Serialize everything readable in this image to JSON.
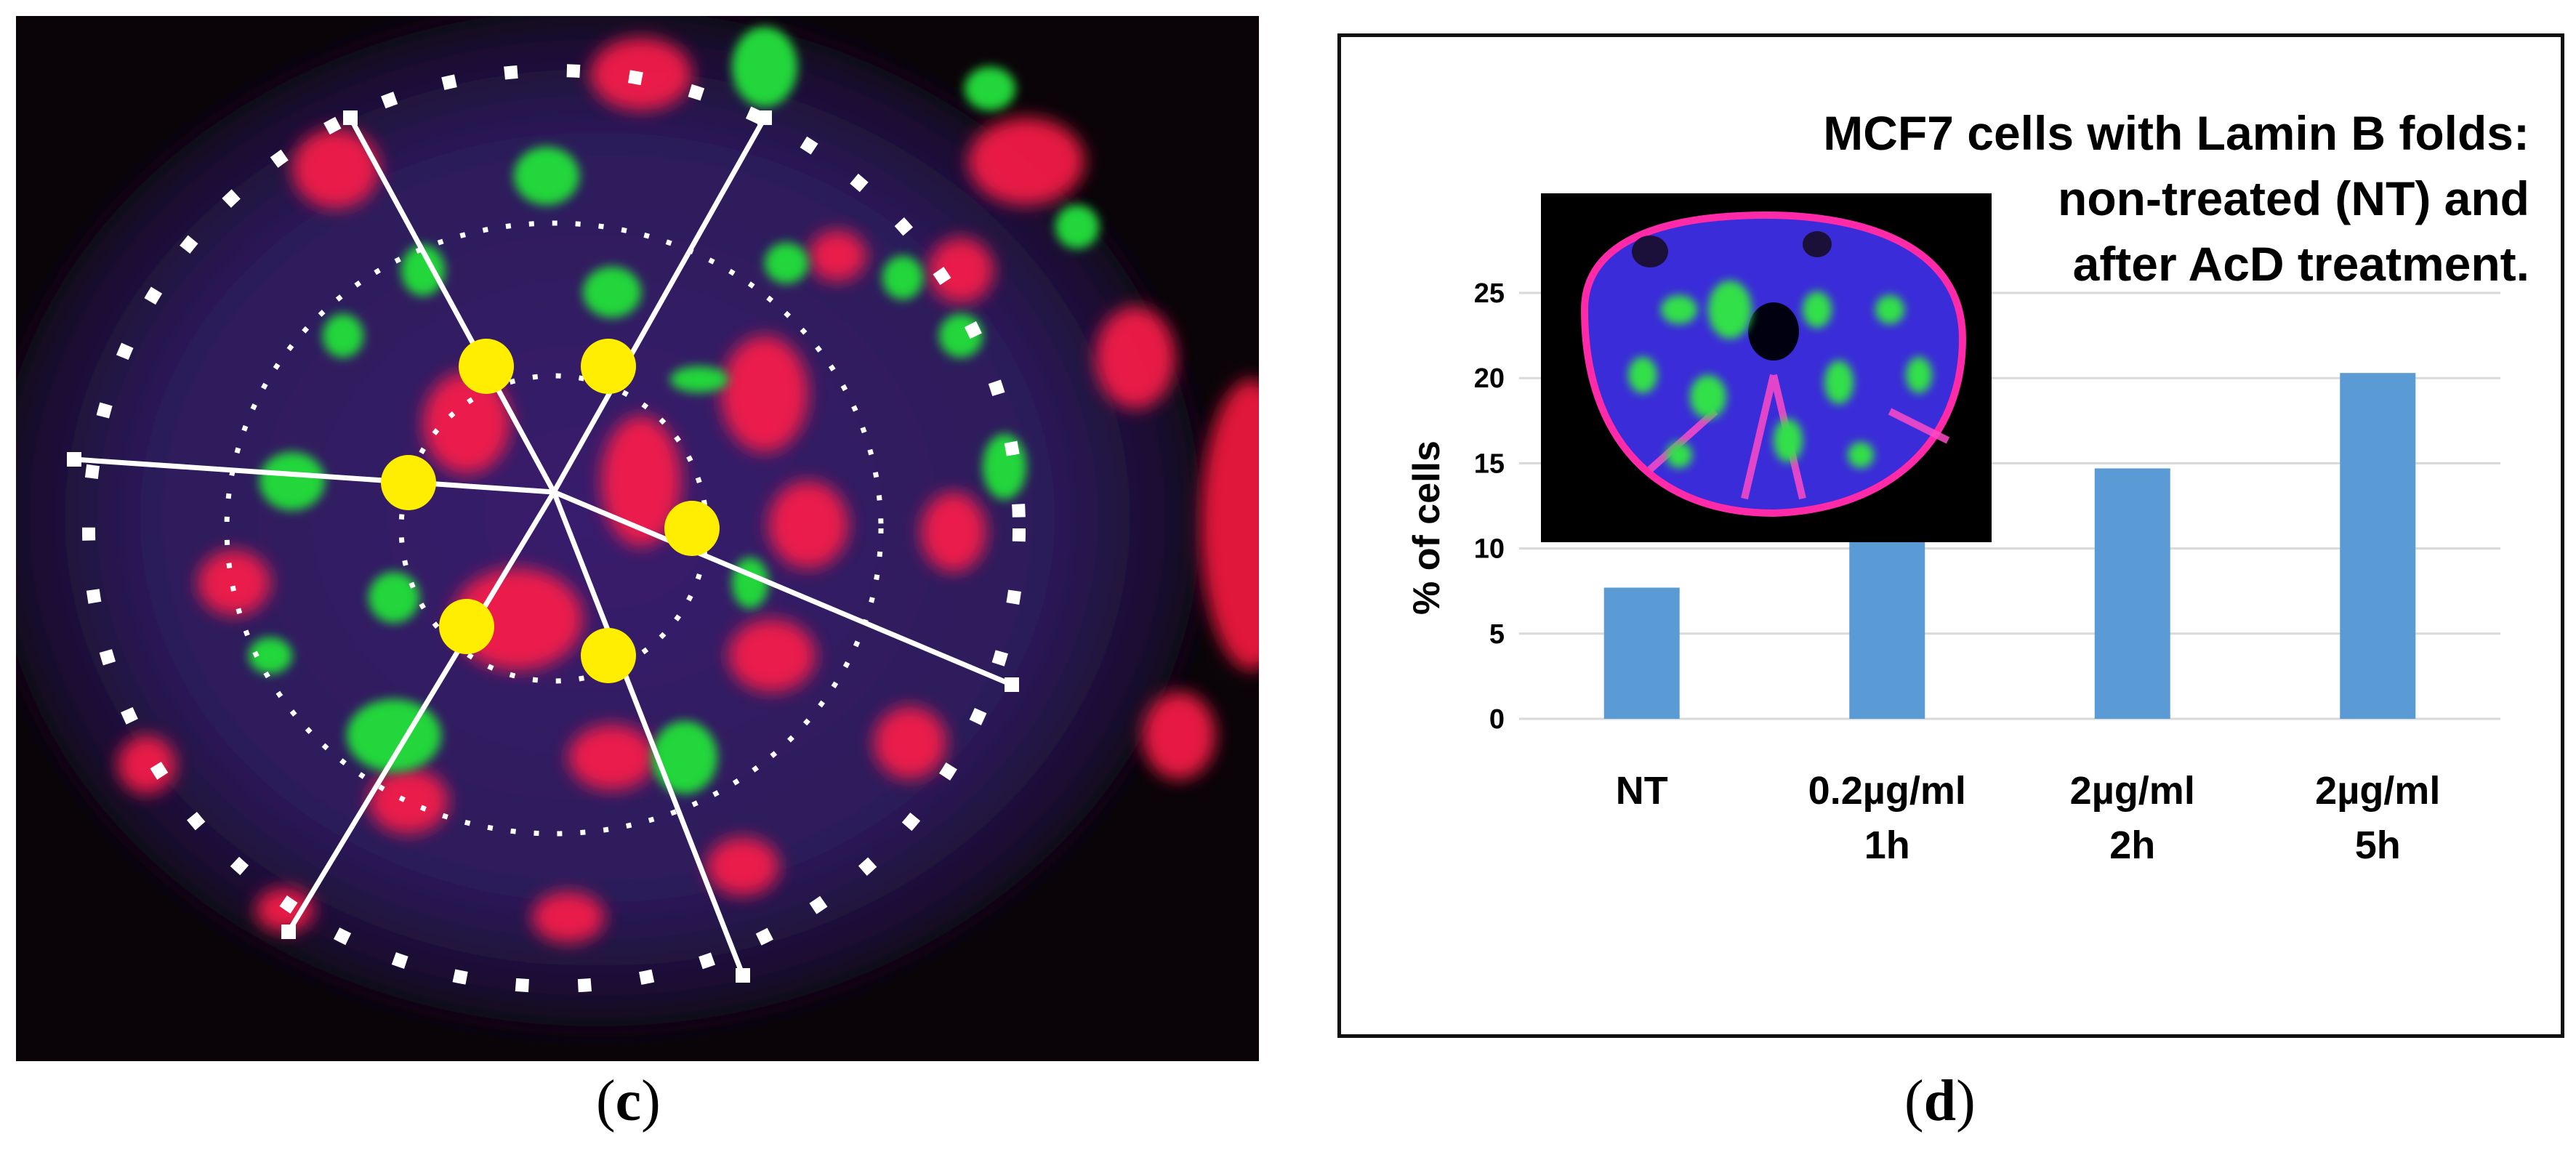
{
  "panel_labels": {
    "c": "c",
    "d": "d"
  },
  "colors": {
    "bar": "#5B9BD5",
    "grid": "#d9d9d9",
    "nucleus_bg": "#2a1a55",
    "red_signal": "#ff1f4a",
    "green_signal": "#22d63a",
    "marker": "#ffee00",
    "overlay": "#ffffff"
  },
  "microscopy": {
    "panel_c": "fluorescence image of a nucleus with concentric dotted circles, six radial lines and six yellow markers",
    "inset_d": "fluorescence image of a nucleus with Lamin B folds"
  },
  "chart_data": {
    "type": "bar",
    "title": [
      "MCF7 cells with Lamin B folds:",
      "non-treated (NT) and",
      "after AcD treatment."
    ],
    "xlabel": "",
    "ylabel": "% of cells",
    "categories": [
      [
        "NT"
      ],
      [
        "0.2µg/ml",
        "1h"
      ],
      [
        "2µg/ml",
        "2h"
      ],
      [
        "2µg/ml",
        "5h"
      ]
    ],
    "values": [
      7.7,
      11.3,
      14.7,
      20.3
    ],
    "ylim": [
      0,
      25
    ],
    "yticks": [
      0,
      5,
      10,
      15,
      20,
      25
    ],
    "grid": true,
    "legend": "none"
  }
}
